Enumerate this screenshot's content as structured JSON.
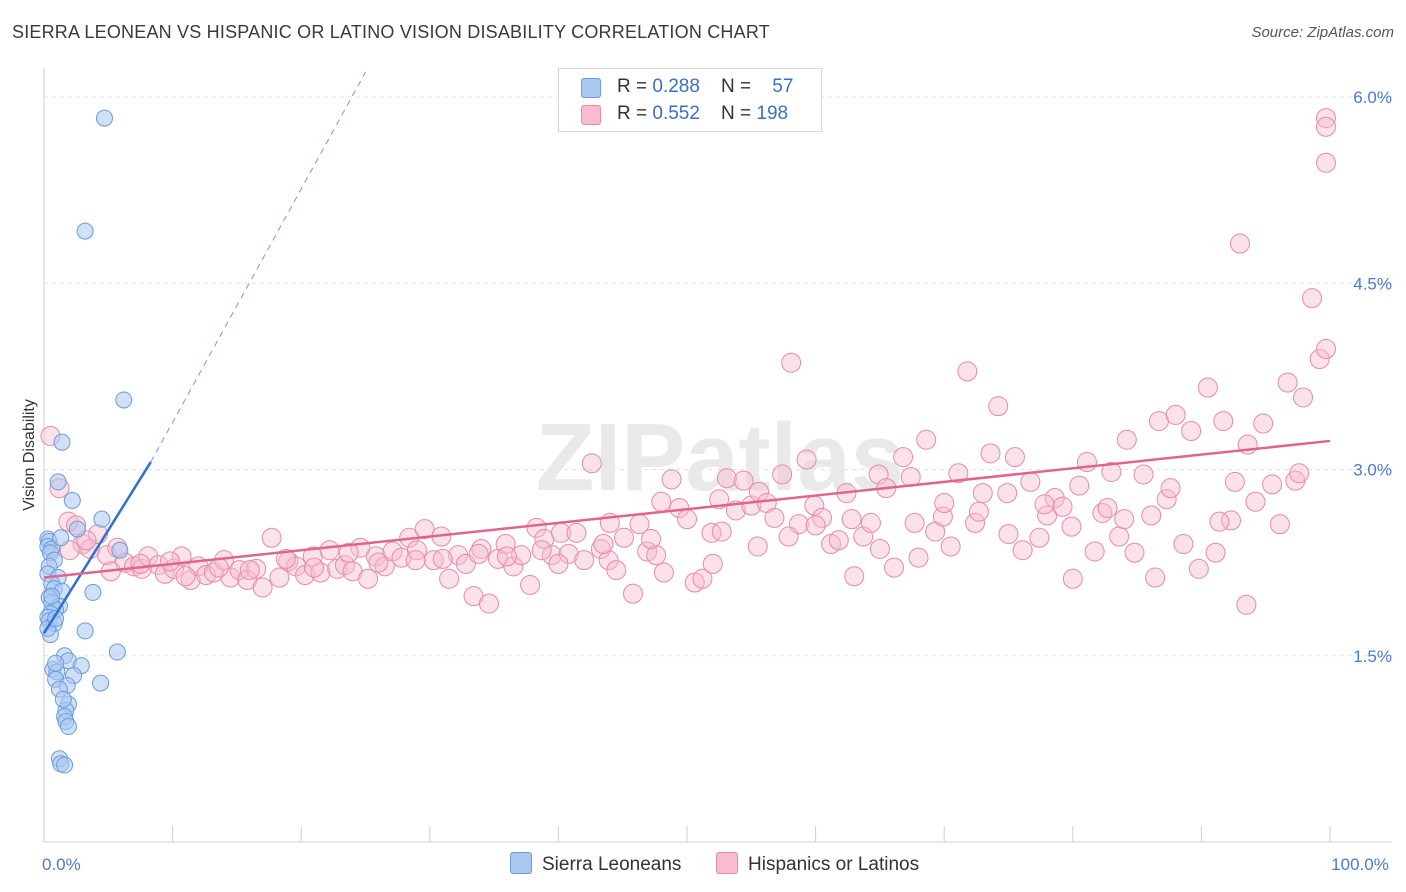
{
  "header": {
    "title": "SIERRA LEONEAN VS HISPANIC OR LATINO VISION DISABILITY CORRELATION CHART",
    "source": "Source: ZipAtlas.com"
  },
  "legend": {
    "rows": [
      {
        "r_label": "R = ",
        "r_value": "0.288",
        "n_label": "N = ",
        "n_value": "57",
        "color": "#a9c8f0",
        "border": "#6b9bdc"
      },
      {
        "r_label": "R = ",
        "r_value": "0.552",
        "n_label": "N = ",
        "n_value": "198",
        "color": "#f7bcd0",
        "border": "#e88aab"
      }
    ]
  },
  "bottom_legend": [
    {
      "label": "Sierra Leoneans",
      "color": "#a9c8f0",
      "border": "#6b9bdc"
    },
    {
      "label": "Hispanics or Latinos",
      "color": "#f7bcd0",
      "border": "#e88aab"
    }
  ],
  "chart_data": {
    "type": "scatter",
    "title": "SIERRA LEONEAN VS HISPANIC OR LATINO VISION DISABILITY CORRELATION CHART",
    "ylabel": "Vision Disability",
    "xlabel": "",
    "xlim": [
      0,
      100
    ],
    "ylim": [
      0,
      6.3
    ],
    "y_ticks": [
      {
        "value": 1.5,
        "label": "1.5%"
      },
      {
        "value": 3.0,
        "label": "3.0%"
      },
      {
        "value": 4.5,
        "label": "4.5%"
      },
      {
        "value": 6.0,
        "label": "6.0%"
      }
    ],
    "x_ticks": [
      {
        "value": 0,
        "label": "0.0%"
      },
      {
        "value": 100,
        "label": "100.0%"
      }
    ],
    "x_minor_ticks": [
      0,
      10,
      20,
      30,
      40,
      50,
      60,
      70,
      80,
      90,
      100
    ],
    "grid": true,
    "watermark": "ZIPatlas",
    "series": [
      {
        "name": "Sierra Leoneans",
        "color": "#a9c8f0",
        "stroke": "#6b9bdc",
        "trend": {
          "x": [
            0.0,
            8.3
          ],
          "y": [
            1.68,
            3.06
          ],
          "dashed_to": [
            25,
            6.2
          ],
          "color": "#2f6fd1"
        },
        "points": [
          [
            4.7,
            5.83
          ],
          [
            3.2,
            4.92
          ],
          [
            6.2,
            3.56
          ],
          [
            1.4,
            3.22
          ],
          [
            1.1,
            2.9
          ],
          [
            2.2,
            2.75
          ],
          [
            4.5,
            2.6
          ],
          [
            2.6,
            2.52
          ],
          [
            5.9,
            2.35
          ],
          [
            0.3,
            2.44
          ],
          [
            0.4,
            2.42
          ],
          [
            0.3,
            2.38
          ],
          [
            0.6,
            2.36
          ],
          [
            0.5,
            2.33
          ],
          [
            0.8,
            2.27
          ],
          [
            0.4,
            2.22
          ],
          [
            0.3,
            2.16
          ],
          [
            1.1,
            2.13
          ],
          [
            0.6,
            2.08
          ],
          [
            0.8,
            2.04
          ],
          [
            1.4,
            2.02
          ],
          [
            3.8,
            2.01
          ],
          [
            0.4,
            1.97
          ],
          [
            0.6,
            1.93
          ],
          [
            1.2,
            1.9
          ],
          [
            0.9,
            1.87
          ],
          [
            0.5,
            1.84
          ],
          [
            0.3,
            1.81
          ],
          [
            0.4,
            1.78
          ],
          [
            0.8,
            1.76
          ],
          [
            3.2,
            1.7
          ],
          [
            0.5,
            1.67
          ],
          [
            5.7,
            1.53
          ],
          [
            1.6,
            1.5
          ],
          [
            1.9,
            1.46
          ],
          [
            2.9,
            1.42
          ],
          [
            0.7,
            1.39
          ],
          [
            1.0,
            1.37
          ],
          [
            2.3,
            1.34
          ],
          [
            0.9,
            1.31
          ],
          [
            4.4,
            1.28
          ],
          [
            1.8,
            1.26
          ],
          [
            1.2,
            1.23
          ],
          [
            1.9,
            1.11
          ],
          [
            1.7,
            1.06
          ],
          [
            1.6,
            1.01
          ],
          [
            1.7,
            0.97
          ],
          [
            1.9,
            0.93
          ],
          [
            1.2,
            0.67
          ],
          [
            1.3,
            0.63
          ],
          [
            1.6,
            0.62
          ],
          [
            0.9,
            1.44
          ],
          [
            1.5,
            1.15
          ],
          [
            0.6,
            1.98
          ],
          [
            0.3,
            1.72
          ],
          [
            1.3,
            2.45
          ],
          [
            0.9,
            1.8
          ]
        ]
      },
      {
        "name": "Hispanics or Latinos",
        "color": "#f7bcd0",
        "stroke": "#e88aab",
        "trend": {
          "x": [
            0.0,
            100.0
          ],
          "y": [
            2.13,
            3.23
          ],
          "color": "#e0648f"
        },
        "points": [
          [
            0.5,
            3.27
          ],
          [
            1.2,
            2.85
          ],
          [
            1.9,
            2.58
          ],
          [
            2.5,
            2.55
          ],
          [
            3.0,
            2.4
          ],
          [
            3.6,
            2.36
          ],
          [
            4.2,
            2.48
          ],
          [
            4.9,
            2.31
          ],
          [
            5.7,
            2.37
          ],
          [
            6.3,
            2.25
          ],
          [
            7.0,
            2.22
          ],
          [
            7.6,
            2.2
          ],
          [
            8.1,
            2.3
          ],
          [
            8.9,
            2.23
          ],
          [
            9.4,
            2.16
          ],
          [
            10.1,
            2.2
          ],
          [
            10.7,
            2.3
          ],
          [
            11.4,
            2.11
          ],
          [
            12.0,
            2.22
          ],
          [
            12.6,
            2.15
          ],
          [
            13.2,
            2.17
          ],
          [
            14.0,
            2.27
          ],
          [
            14.5,
            2.13
          ],
          [
            15.2,
            2.19
          ],
          [
            15.8,
            2.11
          ],
          [
            16.5,
            2.2
          ],
          [
            17.0,
            2.05
          ],
          [
            17.7,
            2.45
          ],
          [
            18.3,
            2.13
          ],
          [
            19.0,
            2.26
          ],
          [
            19.6,
            2.22
          ],
          [
            20.3,
            2.15
          ],
          [
            20.9,
            2.3
          ],
          [
            21.5,
            2.17
          ],
          [
            22.2,
            2.35
          ],
          [
            22.8,
            2.2
          ],
          [
            23.4,
            2.23
          ],
          [
            24.0,
            2.18
          ],
          [
            24.6,
            2.37
          ],
          [
            25.2,
            2.12
          ],
          [
            25.8,
            2.3
          ],
          [
            26.5,
            2.22
          ],
          [
            27.1,
            2.34
          ],
          [
            27.8,
            2.29
          ],
          [
            28.4,
            2.45
          ],
          [
            29.0,
            2.35
          ],
          [
            29.6,
            2.52
          ],
          [
            30.3,
            2.27
          ],
          [
            30.9,
            2.46
          ],
          [
            31.5,
            2.12
          ],
          [
            32.2,
            2.31
          ],
          [
            32.8,
            2.24
          ],
          [
            33.4,
            1.98
          ],
          [
            34.0,
            2.36
          ],
          [
            34.6,
            1.92
          ],
          [
            35.3,
            2.28
          ],
          [
            35.9,
            2.4
          ],
          [
            36.5,
            2.22
          ],
          [
            37.1,
            2.31
          ],
          [
            37.8,
            2.07
          ],
          [
            38.3,
            2.53
          ],
          [
            38.9,
            2.44
          ],
          [
            39.5,
            2.31
          ],
          [
            40.2,
            2.49
          ],
          [
            40.8,
            2.32
          ],
          [
            41.4,
            2.49
          ],
          [
            42.0,
            2.27
          ],
          [
            42.6,
            3.05
          ],
          [
            43.3,
            2.36
          ],
          [
            43.9,
            2.27
          ],
          [
            44.5,
            2.19
          ],
          [
            45.1,
            2.45
          ],
          [
            45.8,
            2.0
          ],
          [
            46.3,
            2.56
          ],
          [
            46.9,
            2.34
          ],
          [
            47.6,
            2.31
          ],
          [
            48.2,
            2.17
          ],
          [
            48.8,
            2.92
          ],
          [
            49.4,
            2.69
          ],
          [
            50.0,
            2.6
          ],
          [
            50.6,
            2.09
          ],
          [
            51.2,
            2.12
          ],
          [
            51.9,
            2.49
          ],
          [
            52.5,
            2.76
          ],
          [
            53.1,
            2.93
          ],
          [
            53.8,
            2.67
          ],
          [
            54.4,
            2.91
          ],
          [
            55.0,
            2.71
          ],
          [
            55.6,
            2.82
          ],
          [
            56.2,
            2.73
          ],
          [
            56.8,
            2.61
          ],
          [
            57.4,
            2.96
          ],
          [
            58.1,
            3.86
          ],
          [
            58.7,
            2.56
          ],
          [
            59.3,
            3.08
          ],
          [
            59.9,
            2.71
          ],
          [
            60.5,
            2.61
          ],
          [
            61.2,
            2.4
          ],
          [
            61.8,
            2.43
          ],
          [
            62.4,
            2.81
          ],
          [
            63.0,
            2.14
          ],
          [
            63.7,
            2.46
          ],
          [
            64.3,
            2.57
          ],
          [
            64.9,
            2.96
          ],
          [
            65.5,
            2.85
          ],
          [
            66.1,
            2.21
          ],
          [
            66.8,
            3.1
          ],
          [
            67.4,
            2.94
          ],
          [
            68.0,
            2.29
          ],
          [
            68.6,
            3.24
          ],
          [
            69.3,
            2.5
          ],
          [
            69.9,
            2.62
          ],
          [
            70.5,
            2.38
          ],
          [
            71.1,
            2.97
          ],
          [
            71.8,
            3.79
          ],
          [
            72.4,
            2.57
          ],
          [
            73.0,
            2.81
          ],
          [
            73.6,
            3.13
          ],
          [
            74.2,
            3.51
          ],
          [
            74.9,
            2.81
          ],
          [
            75.5,
            3.1
          ],
          [
            76.1,
            2.35
          ],
          [
            76.7,
            2.9
          ],
          [
            77.4,
            2.45
          ],
          [
            78.0,
            2.63
          ],
          [
            78.6,
            2.77
          ],
          [
            79.2,
            2.7
          ],
          [
            79.9,
            2.54
          ],
          [
            80.5,
            2.87
          ],
          [
            81.1,
            3.06
          ],
          [
            81.7,
            2.34
          ],
          [
            82.3,
            2.65
          ],
          [
            83.0,
            2.98
          ],
          [
            83.6,
            2.46
          ],
          [
            84.2,
            3.24
          ],
          [
            84.8,
            2.33
          ],
          [
            85.5,
            2.96
          ],
          [
            86.1,
            2.63
          ],
          [
            86.7,
            3.39
          ],
          [
            87.3,
            2.76
          ],
          [
            88.0,
            3.44
          ],
          [
            88.6,
            2.4
          ],
          [
            89.2,
            3.31
          ],
          [
            89.8,
            2.2
          ],
          [
            90.5,
            3.66
          ],
          [
            91.1,
            2.33
          ],
          [
            91.7,
            3.39
          ],
          [
            92.3,
            2.59
          ],
          [
            93.0,
            4.82
          ],
          [
            93.6,
            3.2
          ],
          [
            94.2,
            2.74
          ],
          [
            94.8,
            3.37
          ],
          [
            95.5,
            2.88
          ],
          [
            96.1,
            2.56
          ],
          [
            96.7,
            3.7
          ],
          [
            97.3,
            2.91
          ],
          [
            97.9,
            3.58
          ],
          [
            98.6,
            4.38
          ],
          [
            99.2,
            3.89
          ],
          [
            99.8,
            3.97
          ],
          [
            100.0,
            5.47
          ],
          [
            101.0,
            5.83
          ],
          [
            101.5,
            5.76
          ],
          [
            93.5,
            1.91
          ],
          [
            80.0,
            2.12
          ],
          [
            75.0,
            2.48
          ],
          [
            70.0,
            2.73
          ],
          [
            65.0,
            2.36
          ],
          [
            60.0,
            2.55
          ],
          [
            55.5,
            2.38
          ],
          [
            52.0,
            2.24
          ],
          [
            48.0,
            2.74
          ],
          [
            44.0,
            2.57
          ],
          [
            40.0,
            2.24
          ],
          [
            36.0,
            2.3
          ],
          [
            31.0,
            2.28
          ],
          [
            26.0,
            2.25
          ],
          [
            21.0,
            2.21
          ],
          [
            16.0,
            2.19
          ],
          [
            11.0,
            2.14
          ],
          [
            7.5,
            2.24
          ],
          [
            3.3,
            2.43
          ],
          [
            2.0,
            2.35
          ],
          [
            5.2,
            2.18
          ],
          [
            9.8,
            2.26
          ],
          [
            13.6,
            2.21
          ],
          [
            18.8,
            2.28
          ],
          [
            23.7,
            2.33
          ],
          [
            28.9,
            2.27
          ],
          [
            33.8,
            2.32
          ],
          [
            38.7,
            2.35
          ],
          [
            43.5,
            2.4
          ],
          [
            47.2,
            2.44
          ],
          [
            52.7,
            2.5
          ],
          [
            57.9,
            2.46
          ],
          [
            62.8,
            2.6
          ],
          [
            67.7,
            2.57
          ],
          [
            72.7,
            2.66
          ],
          [
            77.8,
            2.72
          ],
          [
            82.7,
            2.69
          ],
          [
            87.6,
            2.85
          ],
          [
            92.6,
            2.9
          ],
          [
            97.6,
            2.97
          ],
          [
            91.4,
            2.58
          ],
          [
            86.4,
            2.13
          ],
          [
            84.0,
            2.6
          ]
        ]
      }
    ]
  }
}
